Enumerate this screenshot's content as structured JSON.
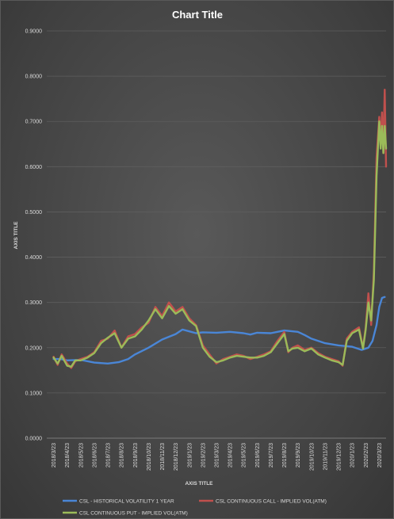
{
  "chart_data": {
    "type": "line",
    "title": "Chart Title",
    "xlabel": "AXIS TITLE",
    "ylabel": "AXIS TITLE",
    "ylim": [
      0,
      0.9
    ],
    "y_ticks": [
      "0.0000",
      "0.1000",
      "0.2000",
      "0.3000",
      "0.4000",
      "0.5000",
      "0.6000",
      "0.7000",
      "0.8000",
      "0.9000"
    ],
    "categories": [
      "2018/3/23",
      "2018/4/23",
      "2018/5/23",
      "2018/6/23",
      "2018/7/23",
      "2018/8/23",
      "2018/9/23",
      "2018/10/23",
      "2018/11/23",
      "2018/12/23",
      "2019/1/23",
      "2019/2/23",
      "2019/3/23",
      "2019/4/23",
      "2019/5/23",
      "2019/6/23",
      "2019/7/23",
      "2019/8/23",
      "2019/9/23",
      "2019/10/23",
      "2019/11/23",
      "2019/12/23",
      "2020/1/23",
      "2020/2/23",
      "2020/3/23"
    ],
    "legend_position": "bottom",
    "grid": true,
    "series": [
      {
        "name": "CSL - HISTORICAL VOLATILITY 1 YEAR",
        "color": "#4a86d6",
        "points": [
          [
            0,
            0.175
          ],
          [
            0.5,
            0.175
          ],
          [
            1,
            0.172
          ],
          [
            2,
            0.173
          ],
          [
            3,
            0.167
          ],
          [
            4,
            0.165
          ],
          [
            4.8,
            0.168
          ],
          [
            5.5,
            0.175
          ],
          [
            6,
            0.185
          ],
          [
            7,
            0.2
          ],
          [
            8,
            0.218
          ],
          [
            9,
            0.23
          ],
          [
            9.5,
            0.24
          ],
          [
            10,
            0.236
          ],
          [
            10.5,
            0.232
          ],
          [
            11,
            0.234
          ],
          [
            12,
            0.233
          ],
          [
            13,
            0.235
          ],
          [
            14,
            0.232
          ],
          [
            14.5,
            0.229
          ],
          [
            15,
            0.233
          ],
          [
            16,
            0.232
          ],
          [
            16.5,
            0.235
          ],
          [
            17,
            0.238
          ],
          [
            18,
            0.235
          ],
          [
            18.5,
            0.228
          ],
          [
            19,
            0.22
          ],
          [
            20,
            0.21
          ],
          [
            21,
            0.205
          ],
          [
            22,
            0.202
          ],
          [
            22.7,
            0.195
          ],
          [
            23.2,
            0.2
          ],
          [
            23.5,
            0.215
          ],
          [
            23.8,
            0.25
          ],
          [
            24,
            0.29
          ],
          [
            24.2,
            0.31
          ],
          [
            24.4,
            0.312
          ]
        ]
      },
      {
        "name": "CSL CONTINUOUS CALL - IMPLIED VOL(ATM)",
        "color": "#c0504d",
        "points": [
          [
            0,
            0.18
          ],
          [
            0.3,
            0.162
          ],
          [
            0.6,
            0.185
          ],
          [
            1,
            0.165
          ],
          [
            1.3,
            0.155
          ],
          [
            1.6,
            0.17
          ],
          [
            2,
            0.175
          ],
          [
            2.5,
            0.18
          ],
          [
            3,
            0.19
          ],
          [
            3.5,
            0.215
          ],
          [
            4,
            0.22
          ],
          [
            4.5,
            0.238
          ],
          [
            5,
            0.2
          ],
          [
            5.5,
            0.225
          ],
          [
            6,
            0.23
          ],
          [
            6.5,
            0.245
          ],
          [
            7,
            0.255
          ],
          [
            7.5,
            0.29
          ],
          [
            8,
            0.27
          ],
          [
            8.5,
            0.3
          ],
          [
            9,
            0.28
          ],
          [
            9.5,
            0.29
          ],
          [
            10,
            0.265
          ],
          [
            10.5,
            0.25
          ],
          [
            11,
            0.205
          ],
          [
            11.5,
            0.185
          ],
          [
            12,
            0.165
          ],
          [
            12.5,
            0.175
          ],
          [
            13,
            0.18
          ],
          [
            13.5,
            0.185
          ],
          [
            14,
            0.182
          ],
          [
            14.5,
            0.175
          ],
          [
            15,
            0.18
          ],
          [
            15.5,
            0.185
          ],
          [
            16,
            0.192
          ],
          [
            16.5,
            0.215
          ],
          [
            17,
            0.235
          ],
          [
            17.3,
            0.19
          ],
          [
            17.6,
            0.2
          ],
          [
            18,
            0.205
          ],
          [
            18.5,
            0.195
          ],
          [
            19,
            0.2
          ],
          [
            19.5,
            0.188
          ],
          [
            20,
            0.18
          ],
          [
            20.5,
            0.175
          ],
          [
            21,
            0.17
          ],
          [
            21.3,
            0.16
          ],
          [
            21.6,
            0.22
          ],
          [
            22,
            0.235
          ],
          [
            22.5,
            0.245
          ],
          [
            22.8,
            0.2
          ],
          [
            23,
            0.245
          ],
          [
            23.2,
            0.32
          ],
          [
            23.4,
            0.25
          ],
          [
            23.6,
            0.37
          ],
          [
            23.8,
            0.62
          ],
          [
            24,
            0.71
          ],
          [
            24.1,
            0.66
          ],
          [
            24.2,
            0.72
          ],
          [
            24.3,
            0.63
          ],
          [
            24.4,
            0.77
          ],
          [
            24.5,
            0.6
          ]
        ]
      },
      {
        "name": "CSL CONTINUOUS PUT - IMPLIED VOL(ATM)",
        "color": "#9bbb59",
        "points": [
          [
            0,
            0.178
          ],
          [
            0.3,
            0.165
          ],
          [
            0.6,
            0.182
          ],
          [
            1,
            0.16
          ],
          [
            1.3,
            0.158
          ],
          [
            1.6,
            0.172
          ],
          [
            2,
            0.172
          ],
          [
            2.5,
            0.178
          ],
          [
            3,
            0.188
          ],
          [
            3.5,
            0.21
          ],
          [
            4,
            0.222
          ],
          [
            4.5,
            0.232
          ],
          [
            5,
            0.2
          ],
          [
            5.5,
            0.22
          ],
          [
            6,
            0.225
          ],
          [
            6.5,
            0.24
          ],
          [
            7,
            0.26
          ],
          [
            7.5,
            0.285
          ],
          [
            8,
            0.265
          ],
          [
            8.5,
            0.292
          ],
          [
            9,
            0.275
          ],
          [
            9.5,
            0.285
          ],
          [
            10,
            0.26
          ],
          [
            10.5,
            0.248
          ],
          [
            11,
            0.2
          ],
          [
            11.5,
            0.18
          ],
          [
            12,
            0.168
          ],
          [
            12.5,
            0.172
          ],
          [
            13,
            0.178
          ],
          [
            13.5,
            0.182
          ],
          [
            14,
            0.18
          ],
          [
            14.5,
            0.178
          ],
          [
            15,
            0.178
          ],
          [
            15.5,
            0.182
          ],
          [
            16,
            0.19
          ],
          [
            16.5,
            0.21
          ],
          [
            17,
            0.23
          ],
          [
            17.3,
            0.192
          ],
          [
            17.6,
            0.198
          ],
          [
            18,
            0.2
          ],
          [
            18.5,
            0.192
          ],
          [
            19,
            0.198
          ],
          [
            19.5,
            0.185
          ],
          [
            20,
            0.178
          ],
          [
            20.5,
            0.172
          ],
          [
            21,
            0.168
          ],
          [
            21.3,
            0.162
          ],
          [
            21.6,
            0.215
          ],
          [
            22,
            0.232
          ],
          [
            22.5,
            0.24
          ],
          [
            22.8,
            0.198
          ],
          [
            23,
            0.24
          ],
          [
            23.2,
            0.3
          ],
          [
            23.4,
            0.26
          ],
          [
            23.6,
            0.35
          ],
          [
            23.8,
            0.58
          ],
          [
            24,
            0.7
          ],
          [
            24.1,
            0.64
          ],
          [
            24.2,
            0.69
          ],
          [
            24.3,
            0.63
          ],
          [
            24.4,
            0.69
          ],
          [
            24.5,
            0.64
          ]
        ]
      }
    ]
  }
}
